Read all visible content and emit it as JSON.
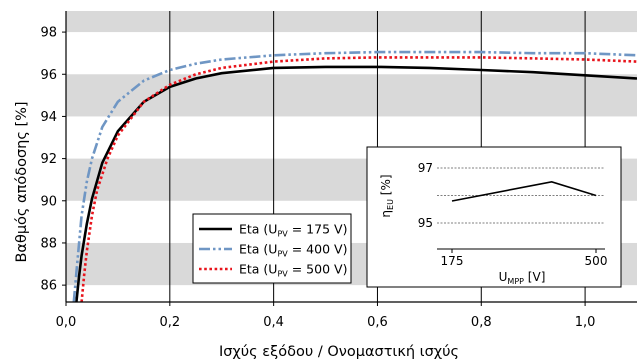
{
  "chart_data": {
    "type": "line",
    "xlabel": "Ισχύς εξόδου / Ονομαστική ισχύς",
    "ylabel": "Βαθμός απόδοσης [%]",
    "xlim": [
      0.0,
      1.1
    ],
    "ylim": [
      85.2,
      99.0
    ],
    "x_ticks": [
      "0,0",
      "0,2",
      "0,4",
      "0,6",
      "0,8",
      "1,0"
    ],
    "y_ticks": [
      "86",
      "88",
      "90",
      "92",
      "94",
      "96",
      "98"
    ],
    "grid": "vertical lines at x ticks, alternating grey horizontal bands",
    "legend_position": "bottom-center",
    "series": [
      {
        "label_main": "Eta (U",
        "label_sub": "PV",
        "label_rest": " = 175 V)",
        "color": "#000000",
        "style": "solid",
        "x": [
          0.02,
          0.025,
          0.03,
          0.04,
          0.05,
          0.07,
          0.1,
          0.15,
          0.2,
          0.25,
          0.3,
          0.4,
          0.5,
          0.6,
          0.7,
          0.8,
          0.9,
          1.0,
          1.1
        ],
        "y": [
          85.2,
          86.4,
          87.4,
          88.9,
          90.1,
          91.8,
          93.3,
          94.7,
          95.4,
          95.8,
          96.05,
          96.3,
          96.35,
          96.35,
          96.3,
          96.2,
          96.1,
          95.95,
          95.8
        ]
      },
      {
        "label_main": "Eta (U",
        "label_sub": "PV",
        "label_rest": " = 400 V)",
        "color": "#6f96c4",
        "style": "dash-dot-dot",
        "x": [
          0.015,
          0.02,
          0.03,
          0.04,
          0.05,
          0.07,
          0.1,
          0.15,
          0.2,
          0.25,
          0.3,
          0.4,
          0.5,
          0.6,
          0.7,
          0.8,
          0.9,
          1.0,
          1.1
        ],
        "y": [
          85.2,
          86.6,
          89.3,
          90.9,
          92.0,
          93.5,
          94.7,
          95.7,
          96.2,
          96.5,
          96.7,
          96.9,
          97.0,
          97.05,
          97.05,
          97.05,
          97.0,
          97.0,
          96.9
        ]
      },
      {
        "label_main": "Eta (U",
        "label_sub": "PV",
        "label_rest": " = 500 V)",
        "color": "#e8141c",
        "style": "dotted",
        "x": [
          0.03,
          0.035,
          0.04,
          0.05,
          0.06,
          0.08,
          0.1,
          0.15,
          0.2,
          0.25,
          0.3,
          0.4,
          0.5,
          0.6,
          0.7,
          0.8,
          0.9,
          1.0,
          1.1
        ],
        "y": [
          85.2,
          86.5,
          87.6,
          89.3,
          90.5,
          92.0,
          93.1,
          94.7,
          95.5,
          96.0,
          96.3,
          96.6,
          96.75,
          96.8,
          96.8,
          96.8,
          96.75,
          96.7,
          96.6
        ]
      }
    ],
    "inset": {
      "type": "line",
      "ylabel_main": "η",
      "ylabel_sub": "EU",
      "ylabel_rest": " [%]",
      "xlabel_main": "U",
      "xlabel_sub": "MPP",
      "xlabel_rest": " [V]",
      "xlim": [
        175,
        500
      ],
      "ylim": [
        95,
        97
      ],
      "x_ticks": [
        "175",
        "500"
      ],
      "y_ticks": [
        "97",
        "95"
      ],
      "x": [
        175,
        400,
        500
      ],
      "y": [
        95.8,
        96.5,
        96.0
      ],
      "color": "#000000"
    }
  }
}
